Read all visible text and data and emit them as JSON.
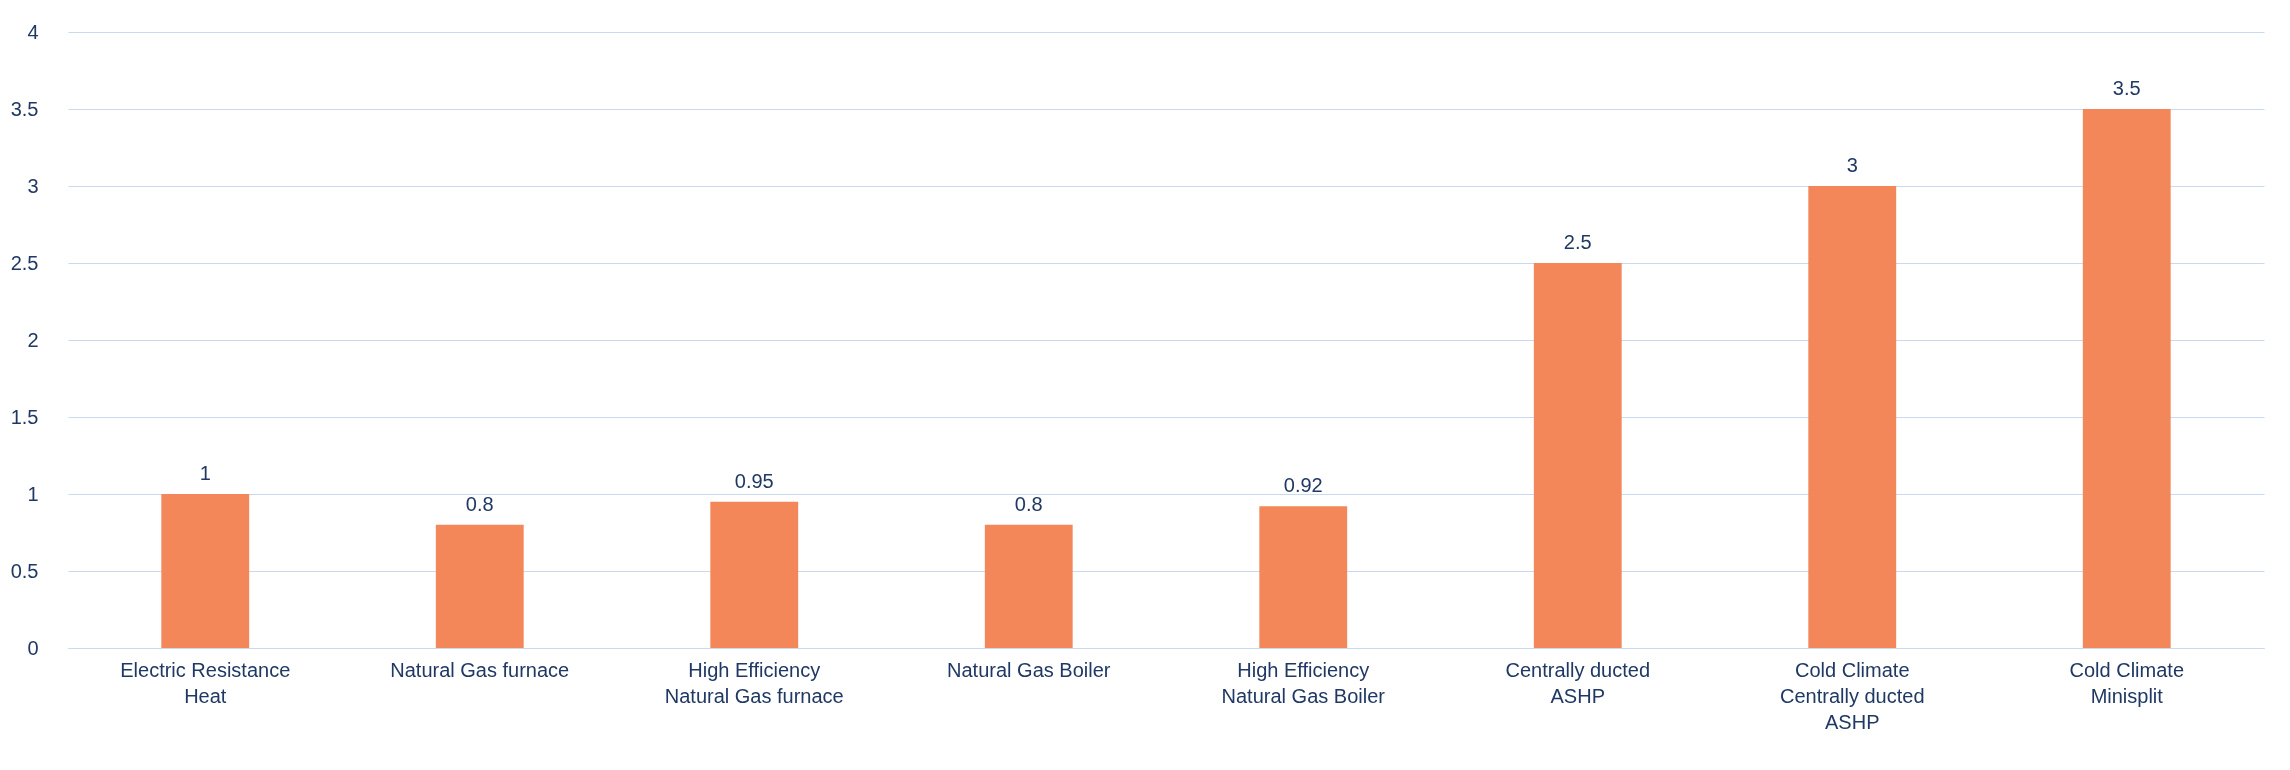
{
  "chart_data": {
    "type": "bar",
    "categories": [
      "Electric Resistance Heat",
      "Natural Gas furnace",
      "High Efficiency Natural Gas furnace",
      "Natural Gas Boiler",
      "High Efficiency Natural Gas Boiler",
      "Centrally ducted ASHP",
      "Cold Climate Centrally ducted ASHP",
      "Cold Climate Minisplit"
    ],
    "values": [
      1,
      0.8,
      0.95,
      0.8,
      0.92,
      2.5,
      3,
      3.5
    ],
    "color": "#f4875a",
    "ylim": [
      0,
      4
    ],
    "yticks": [
      0,
      0.5,
      1,
      1.5,
      2,
      2.5,
      3,
      3.5,
      4
    ],
    "grid": "y",
    "data_labels": true
  }
}
